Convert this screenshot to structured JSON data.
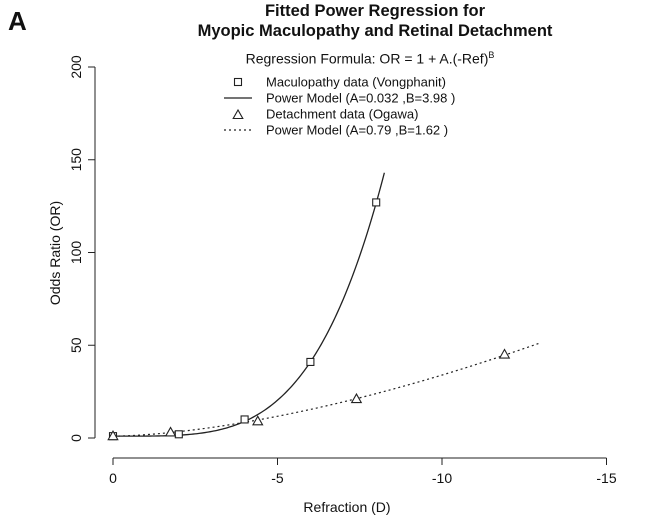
{
  "panel_label": "A",
  "chart_data": {
    "type": "scatter",
    "title": "Fitted Power Regression for",
    "subtitle": "Myopic Maculopathy and Retinal Detachment",
    "formula": {
      "prefix": "Regression Formula: OR = 1 + A.(-Ref)",
      "superscript": "B"
    },
    "xlabel": "Refraction (D)",
    "ylabel": "Odds Ratio (OR)",
    "xlim": [
      0,
      -15
    ],
    "ylim": [
      0,
      200
    ],
    "x_ticks": [
      0,
      -5,
      -10,
      -15
    ],
    "x_tick_labels": [
      "0",
      "-5",
      "-10",
      "-15"
    ],
    "y_ticks": [
      0,
      50,
      100,
      150,
      200
    ],
    "y_tick_labels": [
      "0",
      "50",
      "100",
      "150",
      "200"
    ],
    "legend_placement": "top",
    "series": [
      {
        "name": "Maculopathy data (Vongphanit)",
        "kind": "points",
        "marker": "square",
        "x": [
          0,
          -2,
          -4,
          -6,
          -8
        ],
        "y": [
          1,
          2,
          10,
          41,
          127
        ]
      },
      {
        "name": "Power Model (A=0.032 ,B=3.98 )",
        "kind": "curve",
        "line_style": "solid",
        "A": 0.032,
        "B": 3.98,
        "x_range": [
          0,
          -8.3
        ]
      },
      {
        "name": "Detachment data (Ogawa)",
        "kind": "points",
        "marker": "triangle",
        "x": [
          0,
          -1.75,
          -4.4,
          -7.4,
          -11.9
        ],
        "y": [
          1,
          3,
          9,
          21,
          45
        ]
      },
      {
        "name": "Power Model (A=0.79 ,B=1.62 )",
        "kind": "curve",
        "line_style": "dotted",
        "A": 0.79,
        "B": 1.62,
        "x_range": [
          0,
          -13
        ]
      }
    ]
  }
}
